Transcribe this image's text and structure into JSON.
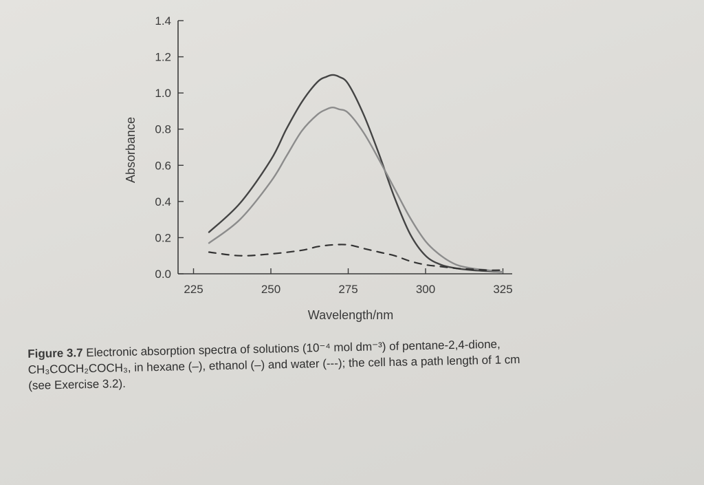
{
  "chart_data": {
    "type": "line",
    "xlabel": "Wavelength/nm",
    "ylabel": "Absorbance",
    "xlim": [
      220,
      328
    ],
    "ylim": [
      0,
      1.4
    ],
    "xticks": [
      "225",
      "250",
      "275",
      "300",
      "325"
    ],
    "yticks": [
      "0.0",
      "0.2",
      "0.4",
      "0.6",
      "0.8",
      "1.0",
      "1.2",
      "1.4"
    ],
    "grid": false,
    "series": [
      {
        "name": "hexane",
        "style": "solid",
        "color": "#444444",
        "x": [
          230,
          240,
          250,
          255,
          260,
          265,
          268,
          270,
          272,
          275,
          280,
          285,
          290,
          295,
          300,
          305,
          310,
          315,
          320,
          325
        ],
        "y": [
          0.23,
          0.39,
          0.63,
          0.8,
          0.95,
          1.06,
          1.09,
          1.1,
          1.09,
          1.05,
          0.88,
          0.66,
          0.42,
          0.22,
          0.1,
          0.05,
          0.03,
          0.02,
          0.015,
          0.01
        ]
      },
      {
        "name": "ethanol",
        "style": "solid",
        "color": "#8c8c8c",
        "x": [
          230,
          240,
          250,
          255,
          260,
          265,
          268,
          270,
          272,
          275,
          280,
          285,
          290,
          295,
          300,
          305,
          310,
          315,
          320,
          325
        ],
        "y": [
          0.17,
          0.3,
          0.51,
          0.65,
          0.79,
          0.88,
          0.91,
          0.92,
          0.91,
          0.89,
          0.78,
          0.63,
          0.47,
          0.31,
          0.18,
          0.1,
          0.05,
          0.03,
          0.02,
          0.01
        ]
      },
      {
        "name": "water",
        "style": "dashed",
        "color": "#333333",
        "x": [
          230,
          240,
          250,
          260,
          265,
          270,
          275,
          280,
          285,
          290,
          295,
          300,
          305,
          310,
          315,
          320,
          325
        ],
        "y": [
          0.12,
          0.1,
          0.11,
          0.13,
          0.15,
          0.16,
          0.16,
          0.14,
          0.12,
          0.1,
          0.07,
          0.05,
          0.04,
          0.03,
          0.025,
          0.02,
          0.02
        ]
      }
    ]
  },
  "caption": {
    "label": "Figure 3.7",
    "line1": " Electronic absorption spectra of solutions (10⁻⁴ mol dm⁻³) of pentane-2,4-dione,",
    "line2": "CH₃COCH₂COCH₃, in hexane (–), ethanol (–) and water (---); the cell has a path length of 1 cm",
    "line3": "(see Exercise 3.2)."
  }
}
